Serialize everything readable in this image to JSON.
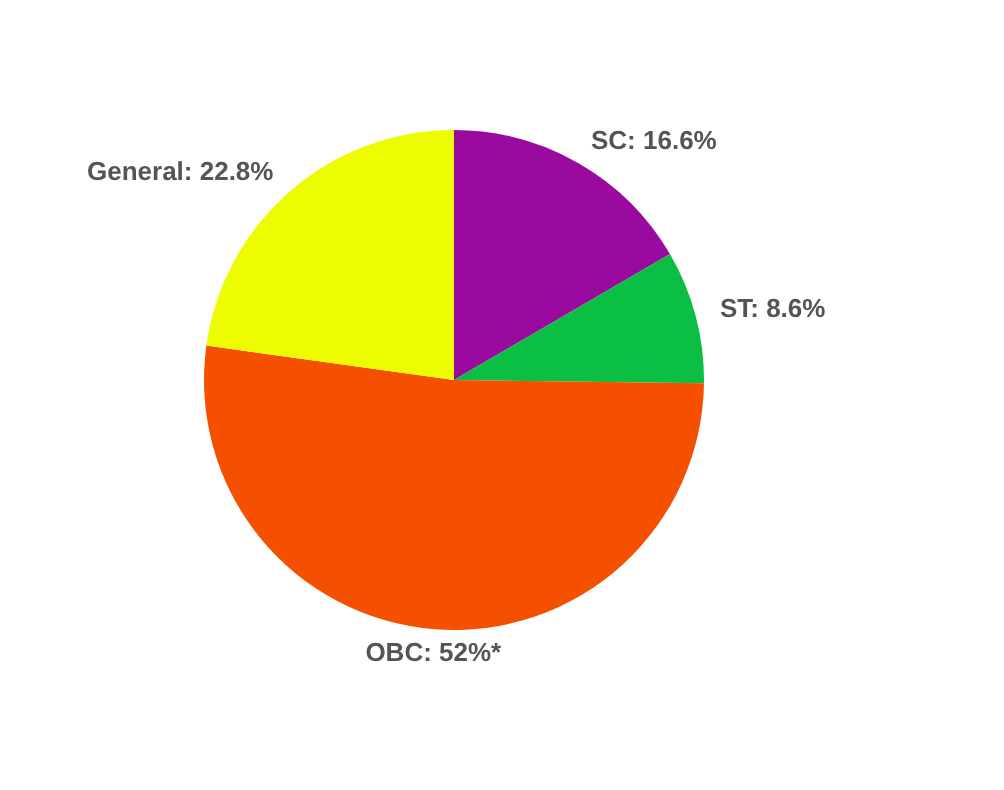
{
  "chart_data": {
    "type": "pie",
    "categories": [
      "SC",
      "ST",
      "OBC",
      "General"
    ],
    "values": [
      16.6,
      8.6,
      52,
      22.8
    ],
    "value_labels": [
      "16.6%",
      "8.6%",
      "52%*",
      "22.8%"
    ],
    "colors": [
      "#9b0a9e",
      "#0bbf45",
      "#f55000",
      "#eefc00"
    ],
    "legend": false
  }
}
